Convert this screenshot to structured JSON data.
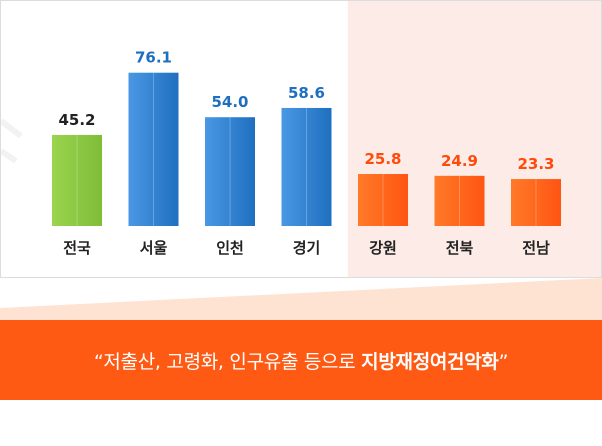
{
  "colors": {
    "national": "#8bc34a",
    "capital_region": "#2f7fd0",
    "provinces": "#ff6a1a",
    "highlight_bg": "#fcebe6",
    "banner": "#ff5a14"
  },
  "chart_data": {
    "type": "bar",
    "categories": [
      "전국",
      "서울",
      "인천",
      "경기",
      "강원",
      "전북",
      "전남"
    ],
    "values": [
      45.2,
      76.1,
      54.0,
      58.6,
      25.8,
      24.9,
      23.3
    ],
    "value_labels": [
      "45.2",
      "76.1",
      "54.0",
      "58.6",
      "25.8",
      "24.9",
      "23.3"
    ],
    "groups": [
      "national",
      "capital_region",
      "capital_region",
      "capital_region",
      "provinces",
      "provinces",
      "provinces"
    ],
    "title": "",
    "xlabel": "",
    "ylabel": "",
    "ylim": [
      0,
      90
    ],
    "grid": false,
    "legend": "none"
  },
  "banner": {
    "quote_open": "“",
    "text_plain": "저출산, 고령화, 인구유출 등으로 ",
    "text_strong": "지방재정여건악화",
    "quote_close": "”"
  }
}
